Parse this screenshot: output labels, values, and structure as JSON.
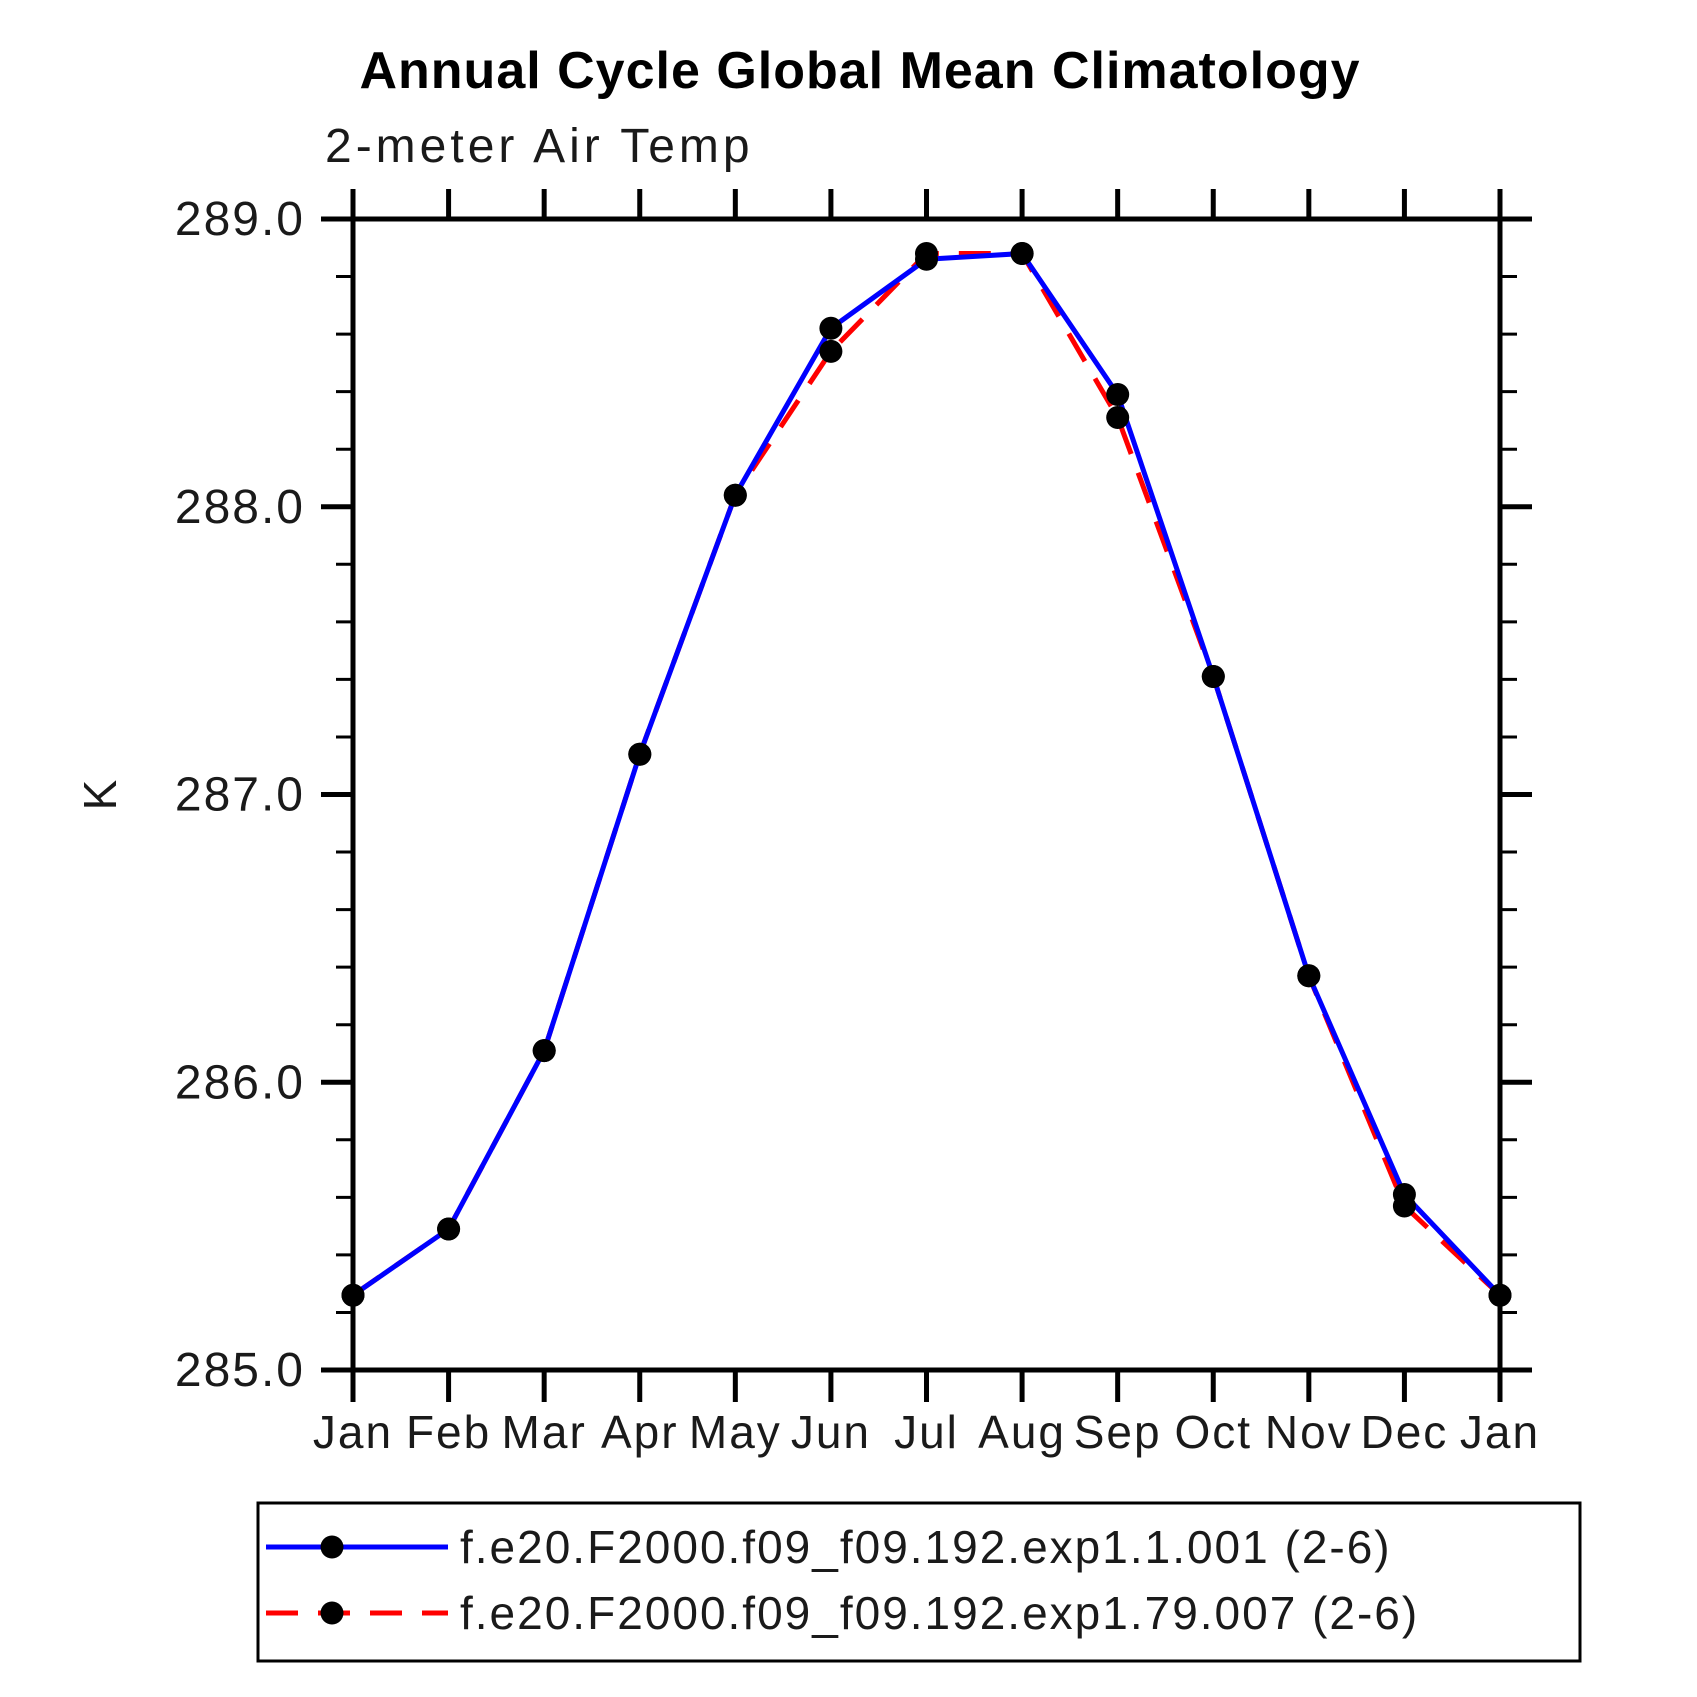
{
  "title": "Annual Cycle Global Mean Climatology",
  "subtitle": "2-meter Air Temp",
  "y_axis_label": "K",
  "colors": {
    "series1": "#0000ff",
    "series2": "#ff0000",
    "marker": "#000000",
    "axis": "#000000"
  },
  "chart_data": {
    "type": "line",
    "title": "Annual Cycle Global Mean Climatology",
    "subtitle": "2-meter Air Temp",
    "xlabel": "",
    "ylabel": "K",
    "ylim": [
      285.0,
      289.0
    ],
    "y_major_ticks": [
      285.0,
      286.0,
      287.0,
      288.0,
      289.0
    ],
    "y_tick_labels": [
      "285.0",
      "286.0",
      "287.0",
      "288.0",
      "289.0"
    ],
    "y_minor_step": 0.2,
    "x_categories": [
      "Jan",
      "Feb",
      "Mar",
      "Apr",
      "May",
      "Jun",
      "Jul",
      "Aug",
      "Sep",
      "Oct",
      "Nov",
      "Dec",
      "Jan"
    ],
    "grid": false,
    "legend_position": "bottom",
    "series": [
      {
        "name": "f.e20.F2000.f09_f09.192.exp1.1.001 (2-6)",
        "color": "#0000ff",
        "style": "solid",
        "marker": "black-dot",
        "values": [
          285.26,
          285.49,
          286.11,
          287.14,
          288.04,
          288.62,
          288.86,
          288.88,
          288.39,
          287.41,
          286.37,
          285.61,
          285.26
        ]
      },
      {
        "name": "f.e20.F2000.f09_f09.192.exp1.79.007 (2-6)",
        "color": "#ff0000",
        "style": "dashed",
        "marker": "black-dot",
        "values": [
          285.26,
          285.49,
          286.11,
          287.14,
          288.04,
          288.54,
          288.88,
          288.88,
          288.31,
          287.41,
          286.37,
          285.57,
          285.26
        ]
      }
    ]
  }
}
